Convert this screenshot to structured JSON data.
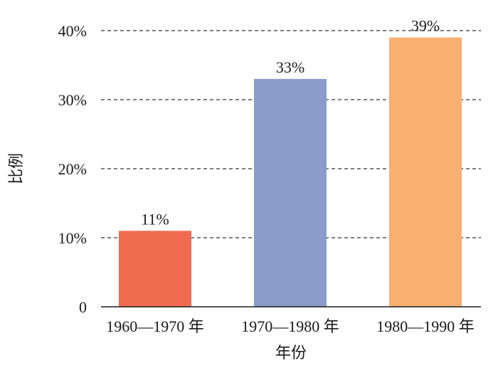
{
  "chart_data": {
    "type": "bar",
    "categories": [
      "1960—1970 年",
      "1970—1980 年",
      "1980—1990 年"
    ],
    "values": [
      11,
      33,
      39
    ],
    "data_labels": [
      "11%",
      "33%",
      "39%"
    ],
    "colors": [
      "#f06b4f",
      "#8a9dca",
      "#f9b072"
    ],
    "ylim": [
      0,
      40
    ],
    "yticks": [
      0,
      10,
      20,
      30,
      40
    ],
    "ytick_labels": [
      "0",
      "10%",
      "20%",
      "30%",
      "40%"
    ],
    "xlabel": "年份",
    "ylabel": "比例",
    "grid": "dashed horizontal",
    "legend": "none"
  }
}
